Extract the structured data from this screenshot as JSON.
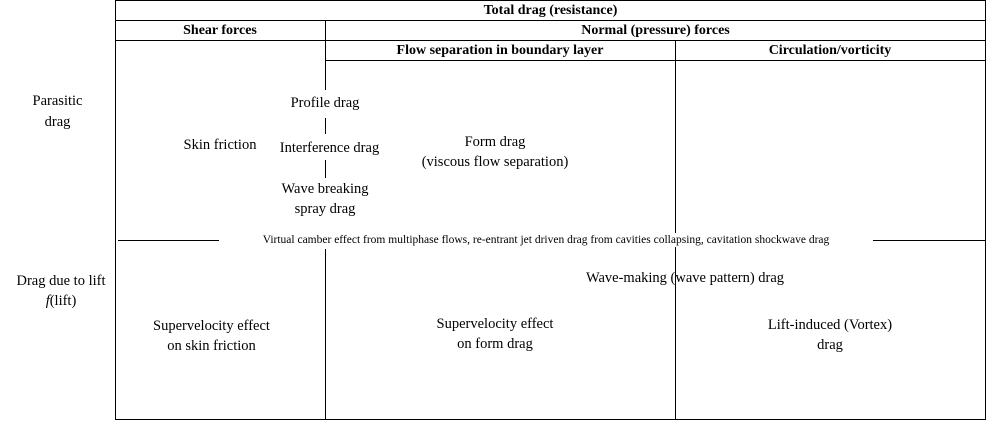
{
  "headers": {
    "total": "Total drag (resistance)",
    "shear": "Shear forces",
    "normal": "Normal (pressure) forces",
    "separation": "Flow separation in boundary layer",
    "circulation": "Circulation/vorticity"
  },
  "row_labels": {
    "parasitic_1": "Parasitic",
    "parasitic_2": "drag",
    "lift_1": "Drag due to lift",
    "lift_f": "f",
    "lift_2": "(lift)"
  },
  "cells": {
    "skin_friction": "Skin friction",
    "profile_drag": "Profile drag",
    "interference_drag": "Interference drag",
    "wave_breaking_1": "Wave breaking",
    "wave_breaking_2": "spray drag",
    "form_drag_1": "Form drag",
    "form_drag_2": "(viscous flow separation)",
    "virtual_camber": "Virtual camber effect from multiphase flows, re-entrant jet driven drag from cavities collapsing, cavitation shockwave drag",
    "wave_making": "Wave-making (wave pattern) drag",
    "supervelocity_skin_1": "Supervelocity effect",
    "supervelocity_skin_2": "on skin friction",
    "supervelocity_form_1": "Supervelocity effect",
    "supervelocity_form_2": "on form drag",
    "lift_induced_1": "Lift-induced (Vortex)",
    "lift_induced_2": "drag"
  }
}
